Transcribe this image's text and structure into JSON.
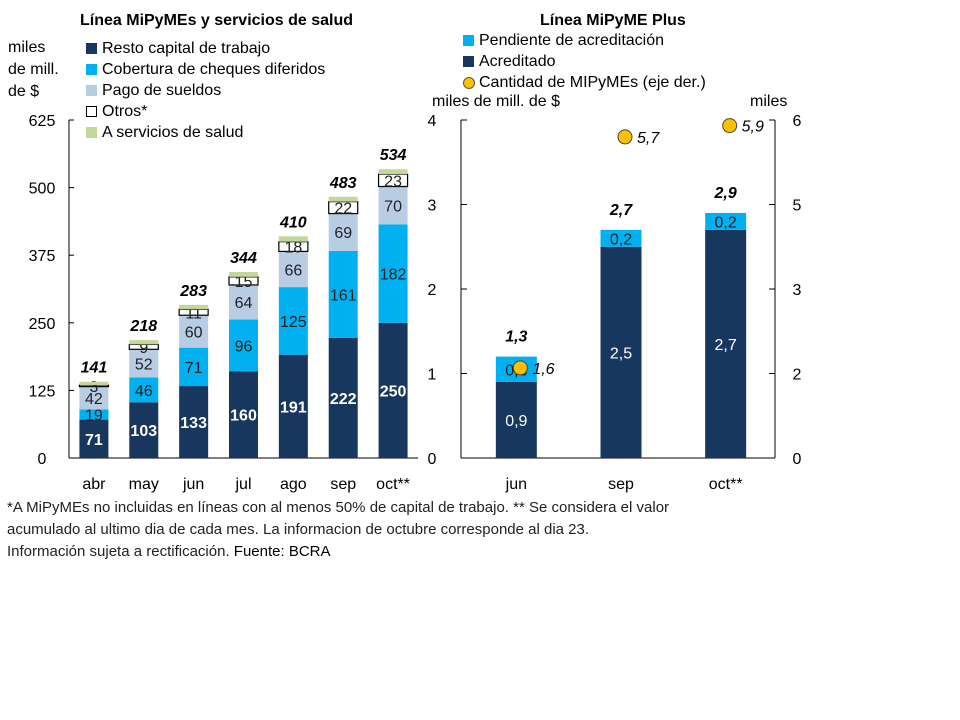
{
  "colors": {
    "resto": "#17375e",
    "cheques": "#00b0f0",
    "sueldos": "#b8cce4",
    "otros": "#ffffff",
    "salud": "#c4d79b",
    "pendiente": "#00b0f0",
    "acreditado": "#17375e",
    "dot": "#ffc000"
  },
  "left_panel": {
    "title": "Línea MiPyMEs y servicios de salud",
    "unit_lines": [
      "miles",
      "de mill.",
      "de $"
    ],
    "legend": [
      {
        "key": "resto",
        "label": "Resto capital de trabajo"
      },
      {
        "key": "cheques",
        "label": "Cobertura de cheques diferidos"
      },
      {
        "key": "sueldos",
        "label": "Pago de sueldos"
      },
      {
        "key": "otros",
        "label": "Otros*"
      },
      {
        "key": "salud",
        "label": "A servicios de salud"
      }
    ]
  },
  "right_panel": {
    "title": "Línea MiPyME Plus",
    "left_unit": "miles de mill. de $",
    "right_unit": "miles",
    "legend": [
      {
        "key": "pendiente",
        "label": "Pendiente de acreditación"
      },
      {
        "key": "acreditado",
        "label": "Acreditado"
      },
      {
        "key": "dot",
        "label": "Cantidad de MIPyMEs (eje der.)"
      }
    ]
  },
  "footnote": {
    "line1": "*A MiPyMEs no incluidas en líneas con al menos 50% de capital de trabajo. ** Se considera el valor",
    "line2": "acumulado al ultimo dia de cada mes. La informacion de octubre corresponde al dia 23.",
    "line3_a": "Información sujeta a rectificación. ",
    "line3_b": "Fuente: BCRA"
  },
  "chart_data": [
    {
      "type": "bar",
      "stacked": true,
      "title": "Línea MiPyMEs y servicios de salud",
      "ylabel": "miles de mill. de $",
      "ylim": [
        0,
        625
      ],
      "yticks": [
        0,
        125,
        250,
        375,
        500,
        625
      ],
      "categories": [
        "abr",
        "may",
        "jun",
        "jul",
        "ago",
        "sep",
        "oct**"
      ],
      "series": [
        {
          "name": "Resto capital de trabajo",
          "key": "resto",
          "values": [
            71,
            103,
            133,
            160,
            191,
            222,
            250
          ],
          "labels": [
            "71",
            "103",
            "133",
            "160",
            "191",
            "222",
            "250"
          ]
        },
        {
          "name": "Cobertura de cheques diferidos",
          "key": "cheques",
          "values": [
            19,
            46,
            71,
            96,
            125,
            161,
            182
          ],
          "labels": [
            "19",
            "46",
            "71",
            "96",
            "125",
            "161",
            "182"
          ]
        },
        {
          "name": "Pago de sueldos",
          "key": "sueldos",
          "values": [
            42,
            52,
            60,
            64,
            66,
            69,
            70
          ],
          "labels": [
            "42",
            "52",
            "60",
            "64",
            "66",
            "69",
            "70"
          ]
        },
        {
          "name": "Otros*",
          "key": "otros",
          "values": [
            3,
            9,
            11,
            15,
            18,
            22,
            23
          ],
          "labels": [
            "3",
            "9",
            "11",
            "15",
            "18",
            "22",
            "23"
          ]
        },
        {
          "name": "A servicios de salud",
          "key": "salud",
          "values": [
            6,
            8,
            8,
            9,
            10,
            9,
            9
          ],
          "labels": []
        }
      ],
      "totals": [
        "141",
        "218",
        "283",
        "344",
        "410",
        "483",
        "534"
      ],
      "legend_position": "top-left"
    },
    {
      "type": "bar",
      "stacked": true,
      "title": "Línea MiPyME Plus",
      "ylabel": "miles de mill. de $",
      "ylim": [
        0,
        4
      ],
      "yticks": [
        0,
        1,
        2,
        3,
        4
      ],
      "y2label": "miles",
      "y2lim": [
        0,
        6
      ],
      "y2ticks": [
        0,
        1.5,
        3,
        4.5,
        6
      ],
      "y2ticklabels": [
        "0",
        "2",
        "3",
        "5",
        "6"
      ],
      "categories": [
        "jun",
        "sep",
        "oct**"
      ],
      "series": [
        {
          "name": "Acreditado",
          "key": "acreditado",
          "values": [
            0.9,
            2.5,
            2.7
          ],
          "labels": [
            "0,9",
            "2,5",
            "2,7"
          ]
        },
        {
          "name": "Pendiente de acreditación",
          "key": "pendiente",
          "values": [
            0.3,
            0.2,
            0.2
          ],
          "labels": [
            "0,3",
            "0,2",
            "0,2"
          ]
        }
      ],
      "totals": [
        "1,3",
        "2,7",
        "2,9"
      ],
      "scatter": {
        "name": "Cantidad de MIPyMEs (eje der.)",
        "axis": "right",
        "values": [
          1.6,
          5.7,
          5.9
        ],
        "labels": [
          "1,6",
          "5,7",
          "5,9"
        ]
      },
      "legend_position": "top"
    }
  ]
}
